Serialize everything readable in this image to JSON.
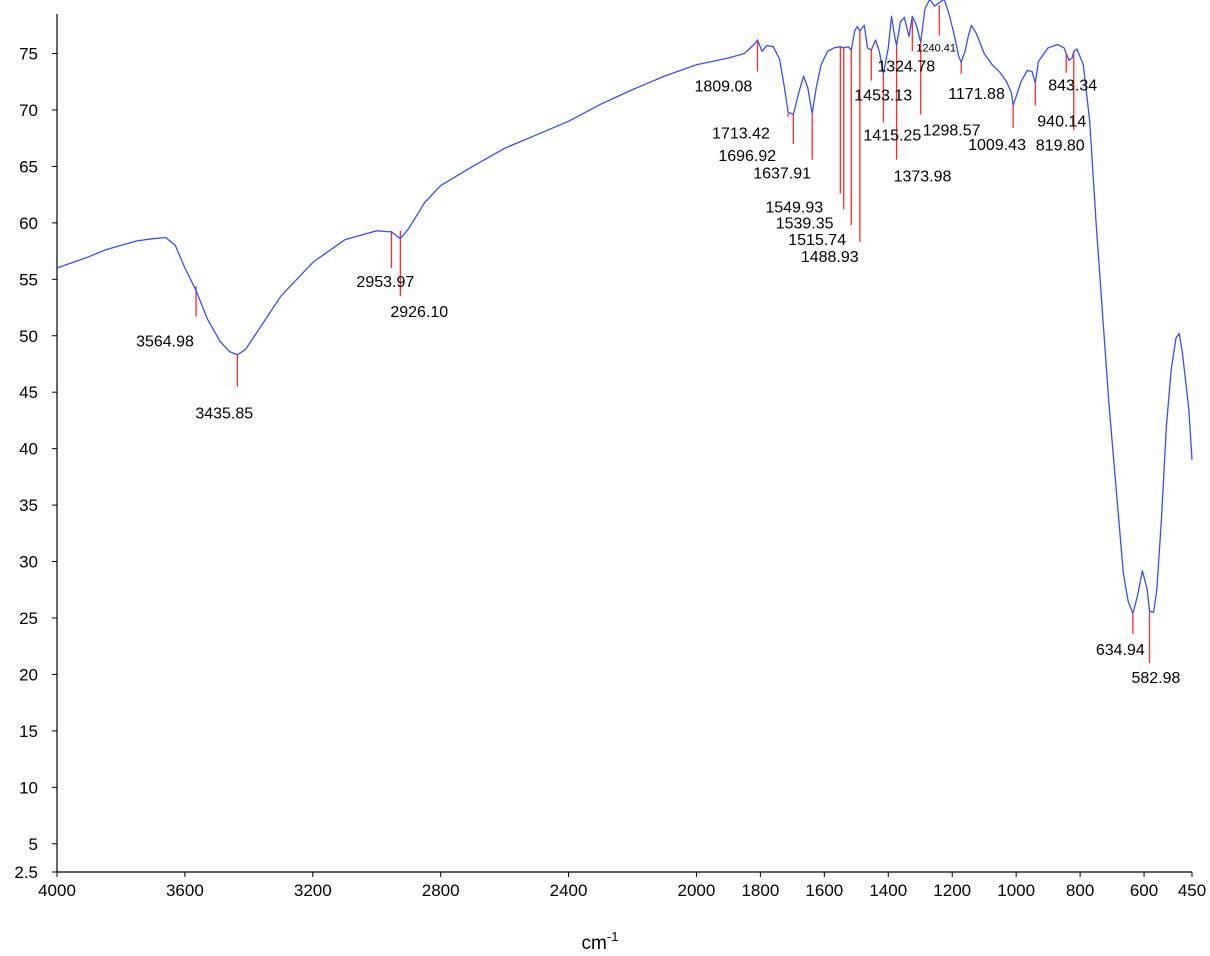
{
  "chart_data": {
    "type": "line",
    "title": "",
    "xlabel": "cm-1",
    "xlabel_main": "cm",
    "xlabel_sup": "-1",
    "ylabel": "",
    "xlim": [
      4000,
      450
    ],
    "x_reversed": true,
    "ylim": [
      2.5,
      78.5
    ],
    "grid": false,
    "legend": "none",
    "colors": {
      "spectrum": "#3b4fe0",
      "peak_marker": "#ff2a2a",
      "axis": "#000000"
    },
    "x_ticks": [
      {
        "value": 4000,
        "label": "4000"
      },
      {
        "value": 3600,
        "label": "3600"
      },
      {
        "value": 3200,
        "label": "3200"
      },
      {
        "value": 2800,
        "label": "2800"
      },
      {
        "value": 2400,
        "label": "2400"
      },
      {
        "value": 2000,
        "label": "2000"
      },
      {
        "value": 1800,
        "label": "1800"
      },
      {
        "value": 1600,
        "label": "1600"
      },
      {
        "value": 1400,
        "label": "1400"
      },
      {
        "value": 1200,
        "label": "1200"
      },
      {
        "value": 1000,
        "label": "1000"
      },
      {
        "value": 800,
        "label": "800"
      },
      {
        "value": 600,
        "label": "600"
      },
      {
        "value": 450,
        "label": "450"
      }
    ],
    "y_ticks": [
      {
        "value": 2.5,
        "label": "2.5"
      },
      {
        "value": 5,
        "label": "5"
      },
      {
        "value": 10,
        "label": "10"
      },
      {
        "value": 15,
        "label": "15"
      },
      {
        "value": 20,
        "label": "20"
      },
      {
        "value": 25,
        "label": "25"
      },
      {
        "value": 30,
        "label": "30"
      },
      {
        "value": 35,
        "label": "35"
      },
      {
        "value": 40,
        "label": "40"
      },
      {
        "value": 45,
        "label": "45"
      },
      {
        "value": 50,
        "label": "50"
      },
      {
        "value": 55,
        "label": "55"
      },
      {
        "value": 60,
        "label": "60"
      },
      {
        "value": 65,
        "label": "65"
      },
      {
        "value": 70,
        "label": "70"
      },
      {
        "value": 75,
        "label": "75"
      }
    ],
    "series": [
      {
        "points": [
          [
            4000,
            56.0
          ],
          [
            3950,
            56.5
          ],
          [
            3900,
            57.0
          ],
          [
            3850,
            57.6
          ],
          [
            3800,
            58.0
          ],
          [
            3750,
            58.4
          ],
          [
            3700,
            58.6
          ],
          [
            3660,
            58.7
          ],
          [
            3630,
            58.0
          ],
          [
            3600,
            56.0
          ],
          [
            3564.98,
            54.0
          ],
          [
            3530,
            51.5
          ],
          [
            3490,
            49.5
          ],
          [
            3460,
            48.6
          ],
          [
            3435.85,
            48.3
          ],
          [
            3410,
            48.8
          ],
          [
            3370,
            50.5
          ],
          [
            3300,
            53.5
          ],
          [
            3200,
            56.5
          ],
          [
            3100,
            58.5
          ],
          [
            3000,
            59.3
          ],
          [
            2953.97,
            59.2
          ],
          [
            2926.1,
            58.6
          ],
          [
            2900,
            59.5
          ],
          [
            2850,
            61.8
          ],
          [
            2800,
            63.3
          ],
          [
            2700,
            65.0
          ],
          [
            2600,
            66.6
          ],
          [
            2500,
            67.8
          ],
          [
            2400,
            69.0
          ],
          [
            2300,
            70.5
          ],
          [
            2200,
            71.8
          ],
          [
            2100,
            73.0
          ],
          [
            2000,
            74.0
          ],
          [
            1900,
            74.6
          ],
          [
            1850,
            75.0
          ],
          [
            1820,
            75.8
          ],
          [
            1809.08,
            76.2
          ],
          [
            1795,
            75.2
          ],
          [
            1780,
            75.7
          ],
          [
            1760,
            75.6
          ],
          [
            1740,
            74.5
          ],
          [
            1725,
            72.0
          ],
          [
            1713.42,
            69.8
          ],
          [
            1696.92,
            69.6
          ],
          [
            1680,
            71.5
          ],
          [
            1665,
            73.0
          ],
          [
            1652,
            72.0
          ],
          [
            1637.91,
            69.7
          ],
          [
            1625,
            72.0
          ],
          [
            1610,
            74.0
          ],
          [
            1590,
            75.2
          ],
          [
            1570,
            75.5
          ],
          [
            1549.93,
            75.6
          ],
          [
            1539.35,
            75.5
          ],
          [
            1525,
            75.6
          ],
          [
            1515.74,
            75.3
          ],
          [
            1505,
            77.0
          ],
          [
            1497,
            77.4
          ],
          [
            1488.93,
            77.0
          ],
          [
            1475,
            77.5
          ],
          [
            1465,
            75.5
          ],
          [
            1453.13,
            75.3
          ],
          [
            1440,
            76.2
          ],
          [
            1428,
            75.2
          ],
          [
            1415.25,
            73.2
          ],
          [
            1400,
            75.5
          ],
          [
            1390,
            78.3
          ],
          [
            1380,
            76.5
          ],
          [
            1373.98,
            75.7
          ],
          [
            1362,
            77.8
          ],
          [
            1350,
            78.2
          ],
          [
            1335,
            76.5
          ],
          [
            1324.78,
            78.3
          ],
          [
            1312,
            77.5
          ],
          [
            1298.57,
            76.0
          ],
          [
            1285,
            79.0
          ],
          [
            1270,
            79.8
          ],
          [
            1255,
            79.2
          ],
          [
            1240.41,
            79.5
          ],
          [
            1225,
            79.8
          ],
          [
            1210,
            78.5
          ],
          [
            1195,
            76.8
          ],
          [
            1180,
            74.8
          ],
          [
            1171.88,
            74.2
          ],
          [
            1160,
            75.2
          ],
          [
            1150,
            76.5
          ],
          [
            1140,
            77.5
          ],
          [
            1125,
            76.8
          ],
          [
            1100,
            75.0
          ],
          [
            1075,
            74.0
          ],
          [
            1050,
            73.3
          ],
          [
            1030,
            72.5
          ],
          [
            1015,
            71.5
          ],
          [
            1009.43,
            70.4
          ],
          [
            1000,
            71.2
          ],
          [
            985,
            72.5
          ],
          [
            965,
            73.5
          ],
          [
            950,
            73.4
          ],
          [
            940.14,
            72.4
          ],
          [
            930,
            74.3
          ],
          [
            900,
            75.5
          ],
          [
            870,
            75.8
          ],
          [
            850,
            75.5
          ],
          [
            843.34,
            75.0
          ],
          [
            835,
            74.4
          ],
          [
            825,
            74.6
          ],
          [
            819.8,
            75.2
          ],
          [
            810,
            75.4
          ],
          [
            790,
            74.0
          ],
          [
            770,
            69.0
          ],
          [
            750,
            60.0
          ],
          [
            730,
            52.0
          ],
          [
            710,
            44.0
          ],
          [
            695,
            39.0
          ],
          [
            680,
            34.0
          ],
          [
            665,
            29.0
          ],
          [
            650,
            26.5
          ],
          [
            634.94,
            25.4
          ],
          [
            620,
            27.0
          ],
          [
            605,
            29.2
          ],
          [
            590,
            27.5
          ],
          [
            582.98,
            25.6
          ],
          [
            570,
            25.5
          ],
          [
            560,
            27.5
          ],
          [
            545,
            34.0
          ],
          [
            530,
            42.0
          ],
          [
            515,
            47.0
          ],
          [
            500,
            49.8
          ],
          [
            490,
            50.2
          ],
          [
            480,
            48.5
          ],
          [
            470,
            46.0
          ],
          [
            460,
            43.5
          ],
          [
            450,
            39.0
          ]
        ]
      }
    ],
    "peaks": [
      {
        "x": 3564.98,
        "label": "3564.98",
        "top": 54.4,
        "bottom": 51.7
      },
      {
        "x": 3435.85,
        "label": "3435.85",
        "top": 48.3,
        "bottom": 45.5
      },
      {
        "x": 2953.97,
        "label": "2953.97",
        "top": 59.3,
        "bottom": 56.0
      },
      {
        "x": 2926.1,
        "label": "2926.10",
        "top": 59.3,
        "bottom": 53.5
      },
      {
        "x": 1809.08,
        "label": "1809.08",
        "top": 76.1,
        "bottom": 73.4
      },
      {
        "x": 1713.42,
        "label": "1713.42",
        "top": 69.7,
        "bottom": 69.4
      },
      {
        "x": 1696.92,
        "label": "1696.92",
        "top": 69.6,
        "bottom": 67.0
      },
      {
        "x": 1637.91,
        "label": "1637.91",
        "top": 69.7,
        "bottom": 65.6
      },
      {
        "x": 1549.93,
        "label": "1549.93",
        "top": 75.6,
        "bottom": 62.6
      },
      {
        "x": 1539.35,
        "label": "1539.35",
        "top": 75.5,
        "bottom": 61.2
      },
      {
        "x": 1515.74,
        "label": "1515.74",
        "top": 75.3,
        "bottom": 59.8
      },
      {
        "x": 1488.93,
        "label": "1488.93",
        "top": 77.0,
        "bottom": 58.3
      },
      {
        "x": 1453.13,
        "label": "1453.13",
        "top": 75.3,
        "bottom": 72.6
      },
      {
        "x": 1415.25,
        "label": "1415.25",
        "top": 73.2,
        "bottom": 68.9
      },
      {
        "x": 1373.98,
        "label": "1373.98",
        "top": 75.7,
        "bottom": 65.6
      },
      {
        "x": 1324.78,
        "label": "1324.78",
        "top": 78.0,
        "bottom": 75.2
      },
      {
        "x": 1298.57,
        "label": "1298.57",
        "top": 76.0,
        "bottom": 69.6
      },
      {
        "x": 1240.41,
        "label": "1240.41",
        "top": 79.3,
        "bottom": 76.6
      },
      {
        "x": 1171.88,
        "label": "1171.88",
        "top": 74.2,
        "bottom": 73.2
      },
      {
        "x": 1009.43,
        "label": "1009.43",
        "top": 70.4,
        "bottom": 68.4
      },
      {
        "x": 940.14,
        "label": "940.14",
        "top": 72.4,
        "bottom": 70.4
      },
      {
        "x": 843.34,
        "label": "843.34",
        "top": 75.0,
        "bottom": 73.3
      },
      {
        "x": 819.8,
        "label": "819.80",
        "top": 75.2,
        "bottom": 68.2
      },
      {
        "x": 634.94,
        "label": "634.94",
        "top": 25.4,
        "bottom": 23.6
      },
      {
        "x": 582.98,
        "label": "582.98",
        "top": 25.6,
        "bottom": 21.0
      }
    ]
  }
}
